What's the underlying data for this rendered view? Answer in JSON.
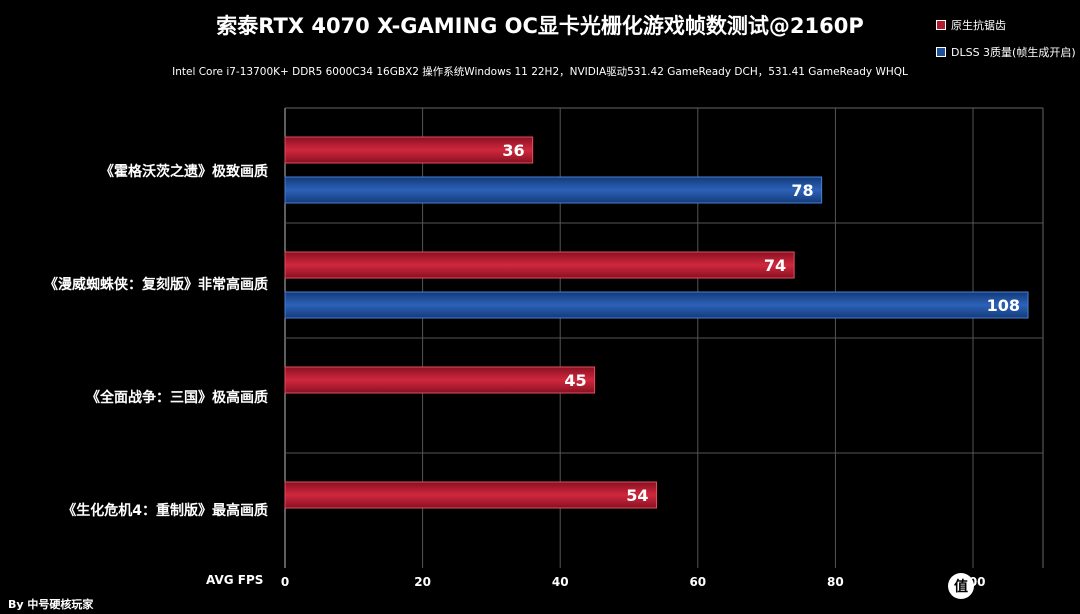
{
  "chart_data": {
    "type": "bar",
    "orientation": "horizontal",
    "title": "索泰RTX 4070 X-GAMING OC显卡光栅化游戏帧数测试@2160P",
    "subtitle": "Intel Core i7-13700K+ DDR5 6000C34 16GBX2 操作系统Windows 11 22H2，NVIDIA驱动531.42 GameReady DCH，531.41 GameReady WHQL",
    "xlabel": "AVG FPS",
    "ylabel": "",
    "xlim": [
      0,
      100
    ],
    "xticks": [
      0,
      20,
      40,
      60,
      80,
      100
    ],
    "grid": true,
    "legend_position": "top-right",
    "categories": [
      "《霍格沃茨之遗》极致画质",
      "《漫威蜘蛛侠：复刻版》非常高画质",
      "《全面战争：三国》极高画质",
      "《生化危机4：重制版》最高画质"
    ],
    "series": [
      {
        "name": "原生抗锯齿",
        "color": "#b01c2e",
        "values": [
          36,
          74,
          45,
          54
        ]
      },
      {
        "name": "DLSS 3质量(帧生成开启)",
        "color": "#1f4f99",
        "values": [
          78,
          108,
          null,
          null
        ]
      }
    ]
  },
  "credit": "By 中号硬核玩家",
  "watermark_glyph": "值"
}
